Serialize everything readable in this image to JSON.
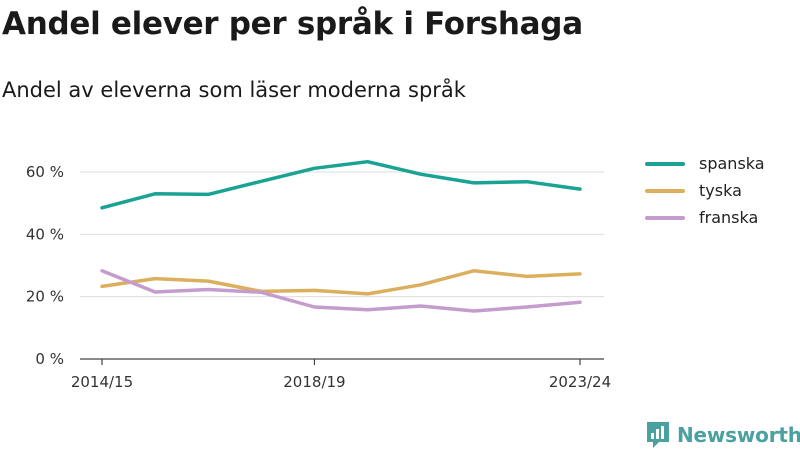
{
  "title": "Andel elever per språk i Forshaga",
  "subtitle": "Andel av eleverna som läser moderna språk",
  "brand": {
    "name": "Newsworthy",
    "icon": "newsworthy-logo-icon"
  },
  "chart_data": {
    "type": "line",
    "x": [
      "2014/15",
      "2015/16",
      "2016/17",
      "2017/18",
      "2018/19",
      "2019/20",
      "2020/21",
      "2021/22",
      "2022/23",
      "2023/24"
    ],
    "x_tick_labels": [
      "2014/15",
      "2018/19",
      "2023/24"
    ],
    "y_ticks": [
      0,
      20,
      40,
      60
    ],
    "y_tick_labels": [
      "0 %",
      "20 %",
      "40 %",
      "60 %"
    ],
    "ylim": [
      0,
      65
    ],
    "grid": "horizontal",
    "legend": "right",
    "series": [
      {
        "name": "spanska",
        "color": "#1aa394",
        "values": [
          48.5,
          53,
          52.8,
          57,
          61.2,
          63.3,
          59.3,
          56.5,
          56.9,
          54.5
        ]
      },
      {
        "name": "tyska",
        "color": "#dcaf5f",
        "values": [
          23.3,
          25.8,
          25,
          21.7,
          22,
          20.9,
          23.8,
          28.3,
          26.5,
          27.3
        ]
      },
      {
        "name": "franska",
        "color": "#c49ccd",
        "values": [
          28.3,
          21.5,
          22.3,
          21.4,
          16.7,
          15.8,
          17,
          15.4,
          16.7,
          18.2
        ]
      }
    ]
  }
}
